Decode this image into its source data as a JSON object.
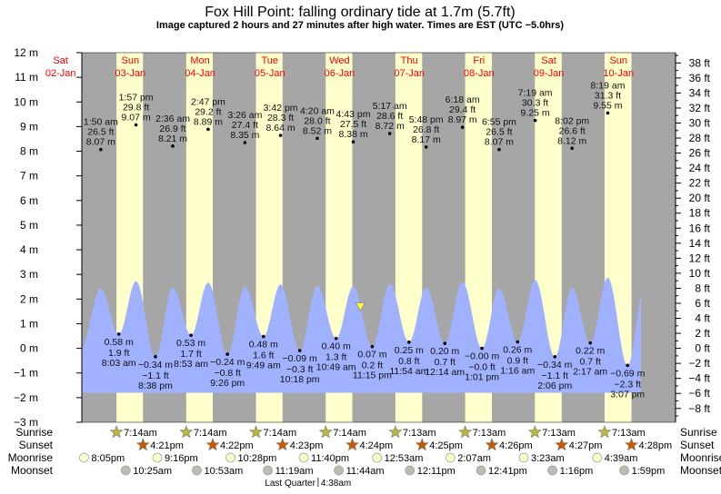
{
  "title": "Fox Hill Point: falling  ordinary tide at 1.7m (5.7ft)",
  "subtitle": "Image captured 2 hours and 27 minutes after high water. Times are EST (UTC −5.0hrs)",
  "colors": {
    "night": "#a6a6a6",
    "day": "#ffffcc",
    "water": "#a0b1ff",
    "date_labels": "#ff0000",
    "sunrise": "#b8b840",
    "sunset": "#c85800",
    "moonrise": "#ffffcc",
    "moonset": "#bcbcb0",
    "current_marker": "#ffff33"
  },
  "chart_data": {
    "type": "area",
    "title": "Fox Hill Point: falling  ordinary tide at 1.7m (5.7ft)",
    "days": [
      {
        "weekday": "Sat",
        "date": "02-Jan"
      },
      {
        "weekday": "Sun",
        "date": "03-Jan"
      },
      {
        "weekday": "Mon",
        "date": "04-Jan"
      },
      {
        "weekday": "Tue",
        "date": "05-Jan"
      },
      {
        "weekday": "Wed",
        "date": "06-Jan"
      },
      {
        "weekday": "Thu",
        "date": "07-Jan"
      },
      {
        "weekday": "Fri",
        "date": "08-Jan"
      },
      {
        "weekday": "Sat",
        "date": "09-Jan"
      },
      {
        "weekday": "Sun",
        "date": "10-Jan"
      }
    ],
    "y_left": {
      "unit": "m",
      "ylim": [
        -3,
        12
      ],
      "ticks": [
        "12 m",
        "11 m",
        "10 m",
        "9 m",
        "8 m",
        "7 m",
        "6 m",
        "5 m",
        "4 m",
        "3 m",
        "2 m",
        "1 m",
        "0 m",
        "−1 m",
        "−2 m",
        "−3 m"
      ]
    },
    "y_right": {
      "unit": "ft",
      "ticks": [
        "38 ft",
        "36 ft",
        "34 ft",
        "32 ft",
        "30 ft",
        "28 ft",
        "26 ft",
        "24 ft",
        "22 ft",
        "20 ft",
        "18 ft",
        "16 ft",
        "14 ft",
        "12 ft",
        "10 ft",
        "8 ft",
        "6 ft",
        "4 ft",
        "2 ft",
        "0 ft",
        "−2 ft",
        "−4 ft",
        "−6 ft",
        "−8 ft"
      ]
    },
    "current": {
      "level_m": 1.7,
      "level_ft": 5.7,
      "state": "falling"
    },
    "highs": [
      {
        "date": "03-Jan",
        "time": "1:50 am",
        "ft": "26.5 ft",
        "m_label": "8.07 m",
        "m": 8.07
      },
      {
        "date": "03-Jan",
        "time": "1:57 pm",
        "ft": "29.8 ft",
        "m_label": "9.07 m",
        "m": 9.07
      },
      {
        "date": "04-Jan",
        "time": "2:36 am",
        "ft": "26.9 ft",
        "m_label": "8.21 m",
        "m": 8.21
      },
      {
        "date": "04-Jan",
        "time": "2:47 pm",
        "ft": "29.2 ft",
        "m_label": "8.89 m",
        "m": 8.89
      },
      {
        "date": "05-Jan",
        "time": "3:26 am",
        "ft": "27.4 ft",
        "m_label": "8.35 m",
        "m": 8.35
      },
      {
        "date": "05-Jan",
        "time": "3:42 pm",
        "ft": "28.3 ft",
        "m_label": "8.64 m",
        "m": 8.64
      },
      {
        "date": "06-Jan",
        "time": "4:20 am",
        "ft": "28.0 ft",
        "m_label": "8.52 m",
        "m": 8.52
      },
      {
        "date": "06-Jan",
        "time": "4:43 pm",
        "ft": "27.5 ft",
        "m_label": "8.38 m",
        "m": 8.38
      },
      {
        "date": "07-Jan",
        "time": "5:17 am",
        "ft": "28.6 ft",
        "m_label": "8.72 m",
        "m": 8.72
      },
      {
        "date": "07-Jan",
        "time": "5:48 pm",
        "ft": "26.8 ft",
        "m_label": "8.17 m",
        "m": 8.17
      },
      {
        "date": "08-Jan",
        "time": "6:18 am",
        "ft": "29.4 ft",
        "m_label": "8.97 m",
        "m": 8.97
      },
      {
        "date": "08-Jan",
        "time": "6:55 pm",
        "ft": "26.5 ft",
        "m_label": "8.07 m",
        "m": 8.07
      },
      {
        "date": "09-Jan",
        "time": "7:19 am",
        "ft": "30.3 ft",
        "m_label": "9.25 m",
        "m": 9.25
      },
      {
        "date": "09-Jan",
        "time": "8:02 pm",
        "ft": "26.6 ft",
        "m_label": "8.12 m",
        "m": 8.12
      },
      {
        "date": "10-Jan",
        "time": "8:19 am",
        "ft": "31.3 ft",
        "m_label": "9.55 m",
        "m": 9.55
      }
    ],
    "lows": [
      {
        "date": "03-Jan",
        "time": "8:03 am",
        "ft": "1.9 ft",
        "m_label": "0.58 m",
        "m": 0.58
      },
      {
        "date": "03-Jan",
        "time": "8:38 pm",
        "ft": "−1.1 ft",
        "m_label": "−0.34 m",
        "m": -0.34
      },
      {
        "date": "04-Jan",
        "time": "8:53 am",
        "ft": "1.7 ft",
        "m_label": "0.53 m",
        "m": 0.53
      },
      {
        "date": "04-Jan",
        "time": "9:26 pm",
        "ft": "−0.8 ft",
        "m_label": "−0.24 m",
        "m": -0.24
      },
      {
        "date": "05-Jan",
        "time": "9:49 am",
        "ft": "1.6 ft",
        "m_label": "0.48 m",
        "m": 0.48
      },
      {
        "date": "05-Jan",
        "time": "10:18 pm",
        "ft": "−0.3 ft",
        "m_label": "−0.09 m",
        "m": -0.09
      },
      {
        "date": "06-Jan",
        "time": "10:49 am",
        "ft": "1.3 ft",
        "m_label": "0.40 m",
        "m": 0.4
      },
      {
        "date": "06-Jan",
        "time": "11:15 pm",
        "ft": "0.2 ft",
        "m_label": "0.07 m",
        "m": 0.07
      },
      {
        "date": "07-Jan",
        "time": "11:54 am",
        "ft": "0.8 ft",
        "m_label": "0.25 m",
        "m": 0.25
      },
      {
        "date": "08-Jan",
        "time": "12:14 am",
        "ft": "0.7 ft",
        "m_label": "0.20 m",
        "m": 0.2
      },
      {
        "date": "08-Jan",
        "time": "1:01 pm",
        "ft": "−0.0 ft",
        "m_label": "−0.00 m",
        "m": 0.0
      },
      {
        "date": "09-Jan",
        "time": "1:16 am",
        "ft": "0.9 ft",
        "m_label": "0.26 m",
        "m": 0.26
      },
      {
        "date": "09-Jan",
        "time": "2:06 pm",
        "ft": "−1.1 ft",
        "m_label": "−0.34 m",
        "m": -0.34
      },
      {
        "date": "10-Jan",
        "time": "2:17 am",
        "ft": "0.7 ft",
        "m_label": "0.22 m",
        "m": 0.22
      },
      {
        "date": "10-Jan",
        "time": "3:07 pm",
        "ft": "−2.3 ft",
        "m_label": "−0.69 m",
        "m": -0.69
      }
    ]
  },
  "almanac": {
    "labels": {
      "sunrise": "Sunrise",
      "sunset": "Sunset",
      "moonrise": "Moonrise",
      "moonset": "Moonset"
    },
    "sunrise": [
      {
        "date": "03-Jan",
        "time": "7:14am"
      },
      {
        "date": "04-Jan",
        "time": "7:14am"
      },
      {
        "date": "05-Jan",
        "time": "7:14am"
      },
      {
        "date": "06-Jan",
        "time": "7:14am"
      },
      {
        "date": "07-Jan",
        "time": "7:13am"
      },
      {
        "date": "08-Jan",
        "time": "7:13am"
      },
      {
        "date": "09-Jan",
        "time": "7:13am"
      },
      {
        "date": "10-Jan",
        "time": "7:13am"
      }
    ],
    "sunset": [
      {
        "date": "03-Jan",
        "time": "4:21pm"
      },
      {
        "date": "04-Jan",
        "time": "4:22pm"
      },
      {
        "date": "05-Jan",
        "time": "4:23pm"
      },
      {
        "date": "06-Jan",
        "time": "4:24pm"
      },
      {
        "date": "07-Jan",
        "time": "4:25pm"
      },
      {
        "date": "08-Jan",
        "time": "4:26pm"
      },
      {
        "date": "09-Jan",
        "time": "4:27pm"
      },
      {
        "date": "10-Jan",
        "time": "4:28pm"
      }
    ],
    "moonrise": [
      {
        "date": "02-Jan",
        "time": "8:05pm"
      },
      {
        "date": "03-Jan",
        "time": "9:16pm"
      },
      {
        "date": "04-Jan",
        "time": "10:28pm"
      },
      {
        "date": "05-Jan",
        "time": "11:40pm"
      },
      {
        "date": "07-Jan",
        "time": "12:53am"
      },
      {
        "date": "08-Jan",
        "time": "2:07am"
      },
      {
        "date": "09-Jan",
        "time": "3:23am"
      },
      {
        "date": "10-Jan",
        "time": "4:39am"
      }
    ],
    "moonset": [
      {
        "date": "03-Jan",
        "time": "10:25am"
      },
      {
        "date": "04-Jan",
        "time": "10:53am"
      },
      {
        "date": "05-Jan",
        "time": "11:19am"
      },
      {
        "date": "06-Jan",
        "time": "11:44am"
      },
      {
        "date": "07-Jan",
        "time": "12:11pm"
      },
      {
        "date": "08-Jan",
        "time": "12:41pm"
      },
      {
        "date": "09-Jan",
        "time": "1:16pm"
      },
      {
        "date": "10-Jan",
        "time": "1:59pm"
      }
    ],
    "moon_phase": {
      "date": "06-Jan",
      "label": "Last Quarter",
      "time": "4:38am"
    }
  }
}
